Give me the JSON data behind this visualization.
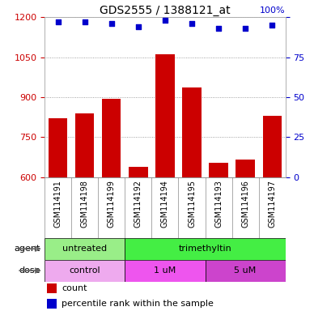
{
  "title": "GDS2555 / 1388121_at",
  "samples": [
    "GSM114191",
    "GSM114198",
    "GSM114199",
    "GSM114192",
    "GSM114194",
    "GSM114195",
    "GSM114193",
    "GSM114196",
    "GSM114197"
  ],
  "counts": [
    820,
    840,
    895,
    640,
    1060,
    935,
    655,
    665,
    830
  ],
  "percentiles": [
    97,
    97,
    96,
    94,
    98,
    96,
    93,
    93,
    95
  ],
  "ylim_left": [
    600,
    1200
  ],
  "ylim_right": [
    0,
    100
  ],
  "yticks_left": [
    600,
    750,
    900,
    1050,
    1200
  ],
  "yticks_right": [
    0,
    25,
    50,
    75,
    100
  ],
  "bar_color": "#cc0000",
  "dot_color": "#0000cc",
  "agent_groups": [
    {
      "label": "untreated",
      "start": 0,
      "end": 3,
      "color": "#99ee88"
    },
    {
      "label": "trimethyltin",
      "start": 3,
      "end": 9,
      "color": "#44ee44"
    }
  ],
  "dose_groups": [
    {
      "label": "control",
      "start": 0,
      "end": 3,
      "color": "#eeaaee"
    },
    {
      "label": "1 uM",
      "start": 3,
      "end": 6,
      "color": "#ee55ee"
    },
    {
      "label": "5 uM",
      "start": 6,
      "end": 9,
      "color": "#cc44cc"
    }
  ],
  "legend_count_color": "#cc0000",
  "legend_dot_color": "#0000cc",
  "grid_color": "#888888",
  "tick_label_color_left": "#cc0000",
  "tick_label_color_right": "#0000cc",
  "sample_bg_color": "#cccccc",
  "sample_border_color": "#888888"
}
